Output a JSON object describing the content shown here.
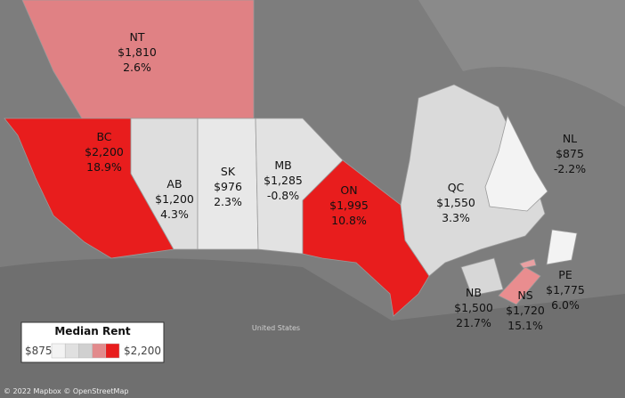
{
  "map": {
    "regions": [
      {
        "code": "NT",
        "rent": "$1,810",
        "change": "2.6%",
        "color": "#e08184"
      },
      {
        "code": "BC",
        "rent": "$2,200",
        "change": "18.9%",
        "color": "#e81d1d"
      },
      {
        "code": "AB",
        "rent": "$1,200",
        "change": "4.3%",
        "color": "#dedede"
      },
      {
        "code": "SK",
        "rent": "$976",
        "change": "2.3%",
        "color": "#e8e8e8"
      },
      {
        "code": "MB",
        "rent": "$1,285",
        "change": "-0.8%",
        "color": "#e2e2e2"
      },
      {
        "code": "ON",
        "rent": "$1,995",
        "change": "10.8%",
        "color": "#e81d1d"
      },
      {
        "code": "QC",
        "rent": "$1,550",
        "change": "3.3%",
        "color": "#dadada"
      },
      {
        "code": "NL",
        "rent": "$875",
        "change": "-2.2%",
        "color": "#f3f3f3"
      },
      {
        "code": "NB",
        "rent": "$1,500",
        "change": "21.7%",
        "color": "#d7d7d7"
      },
      {
        "code": "NS",
        "rent": "$1,720",
        "change": "15.1%",
        "color": "#e98d8f"
      },
      {
        "code": "PE",
        "rent": "$1,775",
        "change": "6.0%",
        "color": "#e9a0a2"
      }
    ],
    "legend": {
      "title": "Median Rent",
      "min": "$875",
      "max": "$2,200",
      "colors": [
        "#f3f3f3",
        "#e0e0e0",
        "#d0d0d0",
        "#e28a8c",
        "#e81d1d"
      ]
    },
    "us_label": "United States",
    "attribution": "© 2022 Mapbox © OpenStreetMap"
  }
}
